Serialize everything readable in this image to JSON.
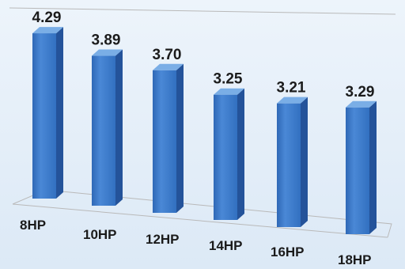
{
  "chart_data": {
    "type": "bar",
    "categories": [
      "8HP",
      "10HP",
      "12HP",
      "14HP",
      "16HP",
      "18HP"
    ],
    "values": [
      4.29,
      3.89,
      3.7,
      3.25,
      3.21,
      3.29
    ],
    "value_labels": [
      "4.29",
      "3.89",
      "3.70",
      "3.25",
      "3.21",
      "3.29"
    ],
    "title": "",
    "xlabel": "",
    "ylabel": "",
    "grid": false,
    "style": "3d-column",
    "colors": {
      "bar_front": "#3a78c9",
      "bar_side": "#24539a",
      "bar_top": "#7aaee6",
      "background": "#e8f1fa",
      "floor_line": "#b9b9b9"
    }
  }
}
